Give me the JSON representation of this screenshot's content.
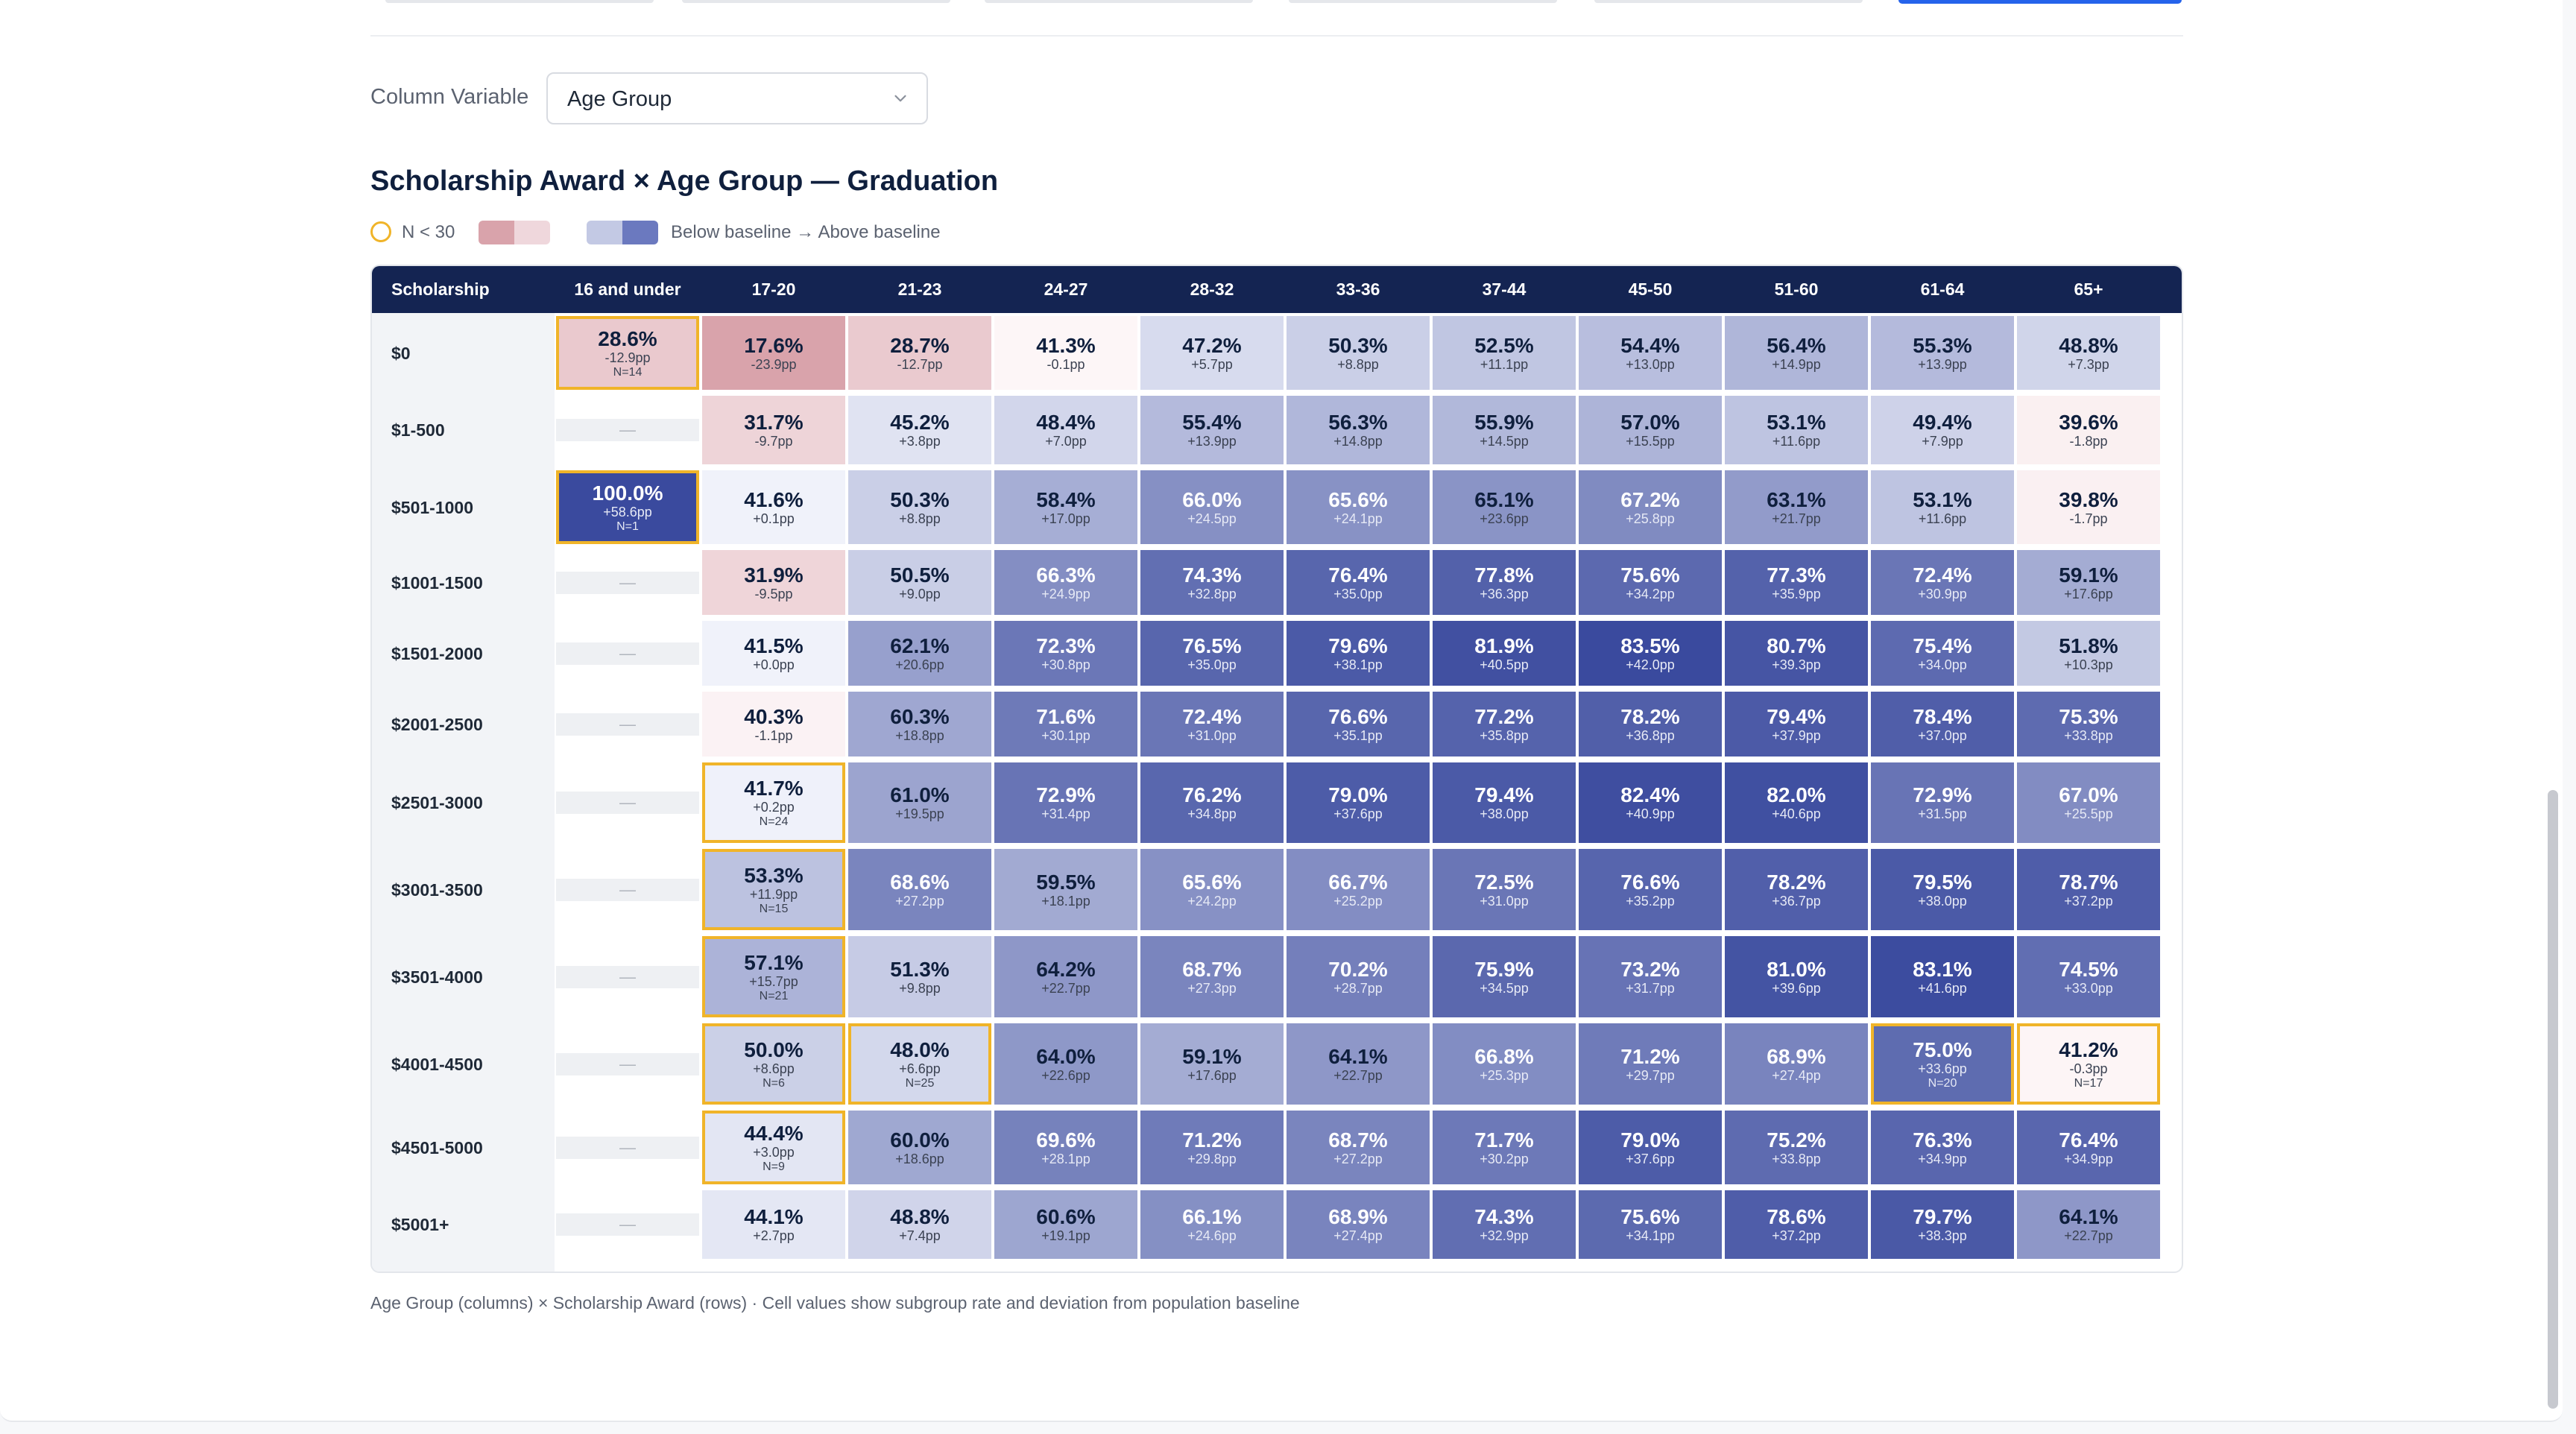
{
  "column_variable": {
    "label": "Column Variable",
    "selected": "Age Group"
  },
  "title": "Scholarship Award × Age Group — Graduation",
  "legend": {
    "small_n": "N < 30",
    "scale": "Below baseline → Above baseline"
  },
  "colors": {
    "header_bg": "#142452",
    "small_n_border": "#f0b429",
    "below_baseline": "#d9a3ab",
    "above_baseline": "#3f4fa0"
  },
  "table": {
    "corner_header": "Scholarship",
    "columns": [
      "16 and under",
      "17-20",
      "21-23",
      "24-27",
      "28-32",
      "33-36",
      "37-44",
      "45-50",
      "51-60",
      "61-64",
      "65+"
    ],
    "rows": [
      {
        "label": "$0",
        "cells": [
          {
            "v": "28.6%",
            "d": "-12.9pp",
            "n": "N=14"
          },
          {
            "v": "17.6%",
            "d": "-23.9pp"
          },
          {
            "v": "28.7%",
            "d": "-12.7pp"
          },
          {
            "v": "41.3%",
            "d": "-0.1pp"
          },
          {
            "v": "47.2%",
            "d": "+5.7pp"
          },
          {
            "v": "50.3%",
            "d": "+8.8pp"
          },
          {
            "v": "52.5%",
            "d": "+11.1pp"
          },
          {
            "v": "54.4%",
            "d": "+13.0pp"
          },
          {
            "v": "56.4%",
            "d": "+14.9pp"
          },
          {
            "v": "55.3%",
            "d": "+13.9pp"
          },
          {
            "v": "48.8%",
            "d": "+7.3pp"
          }
        ]
      },
      {
        "label": "$1-500",
        "cells": [
          null,
          {
            "v": "31.7%",
            "d": "-9.7pp"
          },
          {
            "v": "45.2%",
            "d": "+3.8pp"
          },
          {
            "v": "48.4%",
            "d": "+7.0pp"
          },
          {
            "v": "55.4%",
            "d": "+13.9pp"
          },
          {
            "v": "56.3%",
            "d": "+14.8pp"
          },
          {
            "v": "55.9%",
            "d": "+14.5pp"
          },
          {
            "v": "57.0%",
            "d": "+15.5pp"
          },
          {
            "v": "53.1%",
            "d": "+11.6pp"
          },
          {
            "v": "49.4%",
            "d": "+7.9pp"
          },
          {
            "v": "39.6%",
            "d": "-1.8pp"
          }
        ]
      },
      {
        "label": "$501-1000",
        "cells": [
          {
            "v": "100.0%",
            "d": "+58.6pp",
            "n": "N=1"
          },
          {
            "v": "41.6%",
            "d": "+0.1pp"
          },
          {
            "v": "50.3%",
            "d": "+8.8pp"
          },
          {
            "v": "58.4%",
            "d": "+17.0pp"
          },
          {
            "v": "66.0%",
            "d": "+24.5pp"
          },
          {
            "v": "65.6%",
            "d": "+24.1pp"
          },
          {
            "v": "65.1%",
            "d": "+23.6pp"
          },
          {
            "v": "67.2%",
            "d": "+25.8pp"
          },
          {
            "v": "63.1%",
            "d": "+21.7pp"
          },
          {
            "v": "53.1%",
            "d": "+11.6pp"
          },
          {
            "v": "39.8%",
            "d": "-1.7pp"
          }
        ]
      },
      {
        "label": "$1001-1500",
        "cells": [
          null,
          {
            "v": "31.9%",
            "d": "-9.5pp"
          },
          {
            "v": "50.5%",
            "d": "+9.0pp"
          },
          {
            "v": "66.3%",
            "d": "+24.9pp"
          },
          {
            "v": "74.3%",
            "d": "+32.8pp"
          },
          {
            "v": "76.4%",
            "d": "+35.0pp"
          },
          {
            "v": "77.8%",
            "d": "+36.3pp"
          },
          {
            "v": "75.6%",
            "d": "+34.2pp"
          },
          {
            "v": "77.3%",
            "d": "+35.9pp"
          },
          {
            "v": "72.4%",
            "d": "+30.9pp"
          },
          {
            "v": "59.1%",
            "d": "+17.6pp"
          }
        ]
      },
      {
        "label": "$1501-2000",
        "cells": [
          null,
          {
            "v": "41.5%",
            "d": "+0.0pp"
          },
          {
            "v": "62.1%",
            "d": "+20.6pp"
          },
          {
            "v": "72.3%",
            "d": "+30.8pp"
          },
          {
            "v": "76.5%",
            "d": "+35.0pp"
          },
          {
            "v": "79.6%",
            "d": "+38.1pp"
          },
          {
            "v": "81.9%",
            "d": "+40.5pp"
          },
          {
            "v": "83.5%",
            "d": "+42.0pp"
          },
          {
            "v": "80.7%",
            "d": "+39.3pp"
          },
          {
            "v": "75.4%",
            "d": "+34.0pp"
          },
          {
            "v": "51.8%",
            "d": "+10.3pp"
          }
        ]
      },
      {
        "label": "$2001-2500",
        "cells": [
          null,
          {
            "v": "40.3%",
            "d": "-1.1pp"
          },
          {
            "v": "60.3%",
            "d": "+18.8pp"
          },
          {
            "v": "71.6%",
            "d": "+30.1pp"
          },
          {
            "v": "72.4%",
            "d": "+31.0pp"
          },
          {
            "v": "76.6%",
            "d": "+35.1pp"
          },
          {
            "v": "77.2%",
            "d": "+35.8pp"
          },
          {
            "v": "78.2%",
            "d": "+36.8pp"
          },
          {
            "v": "79.4%",
            "d": "+37.9pp"
          },
          {
            "v": "78.4%",
            "d": "+37.0pp"
          },
          {
            "v": "75.3%",
            "d": "+33.8pp"
          }
        ]
      },
      {
        "label": "$2501-3000",
        "cells": [
          null,
          {
            "v": "41.7%",
            "d": "+0.2pp",
            "n": "N=24"
          },
          {
            "v": "61.0%",
            "d": "+19.5pp"
          },
          {
            "v": "72.9%",
            "d": "+31.4pp"
          },
          {
            "v": "76.2%",
            "d": "+34.8pp"
          },
          {
            "v": "79.0%",
            "d": "+37.6pp"
          },
          {
            "v": "79.4%",
            "d": "+38.0pp"
          },
          {
            "v": "82.4%",
            "d": "+40.9pp"
          },
          {
            "v": "82.0%",
            "d": "+40.6pp"
          },
          {
            "v": "72.9%",
            "d": "+31.5pp"
          },
          {
            "v": "67.0%",
            "d": "+25.5pp"
          }
        ]
      },
      {
        "label": "$3001-3500",
        "cells": [
          null,
          {
            "v": "53.3%",
            "d": "+11.9pp",
            "n": "N=15"
          },
          {
            "v": "68.6%",
            "d": "+27.2pp"
          },
          {
            "v": "59.5%",
            "d": "+18.1pp"
          },
          {
            "v": "65.6%",
            "d": "+24.2pp"
          },
          {
            "v": "66.7%",
            "d": "+25.2pp"
          },
          {
            "v": "72.5%",
            "d": "+31.0pp"
          },
          {
            "v": "76.6%",
            "d": "+35.2pp"
          },
          {
            "v": "78.2%",
            "d": "+36.7pp"
          },
          {
            "v": "79.5%",
            "d": "+38.0pp"
          },
          {
            "v": "78.7%",
            "d": "+37.2pp"
          }
        ]
      },
      {
        "label": "$3501-4000",
        "cells": [
          null,
          {
            "v": "57.1%",
            "d": "+15.7pp",
            "n": "N=21"
          },
          {
            "v": "51.3%",
            "d": "+9.8pp"
          },
          {
            "v": "64.2%",
            "d": "+22.7pp"
          },
          {
            "v": "68.7%",
            "d": "+27.3pp"
          },
          {
            "v": "70.2%",
            "d": "+28.7pp"
          },
          {
            "v": "75.9%",
            "d": "+34.5pp"
          },
          {
            "v": "73.2%",
            "d": "+31.7pp"
          },
          {
            "v": "81.0%",
            "d": "+39.6pp"
          },
          {
            "v": "83.1%",
            "d": "+41.6pp"
          },
          {
            "v": "74.5%",
            "d": "+33.0pp"
          }
        ]
      },
      {
        "label": "$4001-4500",
        "cells": [
          null,
          {
            "v": "50.0%",
            "d": "+8.6pp",
            "n": "N=6"
          },
          {
            "v": "48.0%",
            "d": "+6.6pp",
            "n": "N=25"
          },
          {
            "v": "64.0%",
            "d": "+22.6pp"
          },
          {
            "v": "59.1%",
            "d": "+17.6pp"
          },
          {
            "v": "64.1%",
            "d": "+22.7pp"
          },
          {
            "v": "66.8%",
            "d": "+25.3pp"
          },
          {
            "v": "71.2%",
            "d": "+29.7pp"
          },
          {
            "v": "68.9%",
            "d": "+27.4pp"
          },
          {
            "v": "75.0%",
            "d": "+33.6pp",
            "n": "N=20"
          },
          {
            "v": "41.2%",
            "d": "-0.3pp",
            "n": "N=17"
          }
        ]
      },
      {
        "label": "$4501-5000",
        "cells": [
          null,
          {
            "v": "44.4%",
            "d": "+3.0pp",
            "n": "N=9"
          },
          {
            "v": "60.0%",
            "d": "+18.6pp"
          },
          {
            "v": "69.6%",
            "d": "+28.1pp"
          },
          {
            "v": "71.2%",
            "d": "+29.8pp"
          },
          {
            "v": "68.7%",
            "d": "+27.2pp"
          },
          {
            "v": "71.7%",
            "d": "+30.2pp"
          },
          {
            "v": "79.0%",
            "d": "+37.6pp"
          },
          {
            "v": "75.2%",
            "d": "+33.8pp"
          },
          {
            "v": "76.3%",
            "d": "+34.9pp"
          },
          {
            "v": "76.4%",
            "d": "+34.9pp"
          }
        ]
      },
      {
        "label": "$5001+",
        "cells": [
          null,
          {
            "v": "44.1%",
            "d": "+2.7pp"
          },
          {
            "v": "48.8%",
            "d": "+7.4pp"
          },
          {
            "v": "60.6%",
            "d": "+19.1pp"
          },
          {
            "v": "66.1%",
            "d": "+24.6pp"
          },
          {
            "v": "68.9%",
            "d": "+27.4pp"
          },
          {
            "v": "74.3%",
            "d": "+32.9pp"
          },
          {
            "v": "75.6%",
            "d": "+34.1pp"
          },
          {
            "v": "78.6%",
            "d": "+37.2pp"
          },
          {
            "v": "79.7%",
            "d": "+38.3pp"
          },
          {
            "v": "64.1%",
            "d": "+22.7pp"
          }
        ]
      }
    ],
    "empty_cell_text": "—"
  },
  "caption": "Age Group (columns) × Scholarship Award (rows) · Cell values show subgroup rate and deviation from population baseline"
}
